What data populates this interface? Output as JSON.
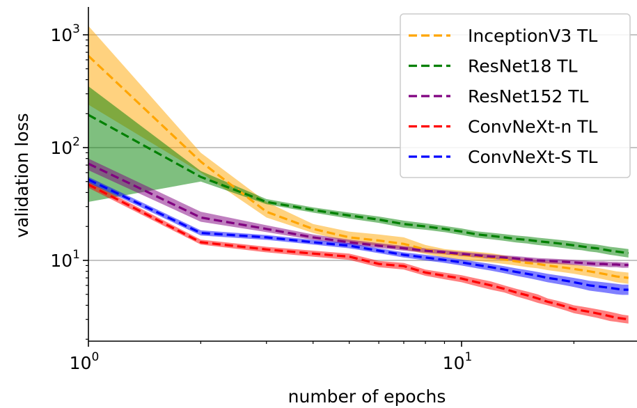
{
  "chart_data": {
    "type": "line",
    "xlabel": "number of epochs",
    "ylabel": "validation loss",
    "xscale": "log",
    "yscale": "log",
    "xlim": [
      1,
      28
    ],
    "ylim": [
      2,
      1600
    ],
    "grid": "horizontal major lines",
    "legend_position": "top-right",
    "x": [
      1,
      2,
      3,
      4,
      5,
      6,
      7,
      8,
      9,
      10,
      11,
      12,
      13,
      14,
      15,
      16,
      17,
      18,
      19,
      20,
      21,
      22,
      23,
      24,
      25,
      26,
      27,
      28
    ],
    "x_ticks": [
      {
        "value": 1,
        "base": "10",
        "exp": "0"
      },
      {
        "value": 10,
        "base": "10",
        "exp": "1"
      }
    ],
    "y_ticks": [
      {
        "value": 10,
        "base": "10",
        "exp": "1"
      },
      {
        "value": 100,
        "base": "10",
        "exp": "2"
      },
      {
        "value": 1000,
        "base": "10",
        "exp": "3"
      }
    ],
    "series": [
      {
        "name": "InceptionV3 TL",
        "color": "#ffa500",
        "band_color": "#ffa500",
        "values": [
          650,
          75,
          27,
          19,
          16,
          15,
          14,
          12.5,
          11.6,
          11.2,
          10.9,
          10.6,
          10.2,
          9.8,
          9.5,
          9.3,
          9.0,
          8.8,
          8.6,
          8.4,
          8.2,
          8.0,
          7.8,
          7.6,
          7.4,
          7.2,
          7.1,
          7.0
        ],
        "lower": [
          240,
          60,
          24,
          17.5,
          14.5,
          13.5,
          12.5,
          11.4,
          10.6,
          10.2,
          9.9,
          9.6,
          9.3,
          9.0,
          8.7,
          8.5,
          8.2,
          8.0,
          7.8,
          7.6,
          7.4,
          7.2,
          7.0,
          6.8,
          6.6,
          6.4,
          6.3,
          6.2
        ],
        "upper": [
          1200,
          90,
          33,
          21,
          18,
          17,
          16,
          13.7,
          12.6,
          12.2,
          11.9,
          11.6,
          11.1,
          10.6,
          10.3,
          10.1,
          9.8,
          9.6,
          9.4,
          9.2,
          9.0,
          8.8,
          8.6,
          8.4,
          8.2,
          8.0,
          7.9,
          7.8
        ]
      },
      {
        "name": "ResNet18 TL",
        "color": "#008000",
        "band_color": "#008000",
        "values": [
          195,
          55,
          33,
          28,
          25,
          23,
          21,
          20,
          19,
          18,
          17,
          16.5,
          16,
          15.5,
          15.2,
          14.8,
          14.5,
          14.2,
          13.9,
          13.6,
          13.3,
          13.0,
          12.8,
          12.5,
          12.2,
          12.0,
          11.8,
          11.6
        ],
        "lower": [
          33,
          50,
          31.5,
          26.5,
          23.5,
          21.5,
          19.5,
          18.7,
          17.8,
          16.8,
          15.9,
          15.4,
          14.9,
          14.4,
          14.1,
          13.7,
          13.4,
          13.1,
          12.8,
          12.5,
          12.3,
          12.0,
          11.8,
          11.5,
          11.2,
          11.0,
          10.8,
          10.6
        ],
        "upper": [
          350,
          62,
          35,
          29.5,
          26.5,
          24.5,
          22.5,
          21.3,
          20.2,
          19.2,
          18.1,
          17.6,
          17.1,
          16.6,
          16.3,
          15.9,
          15.6,
          15.3,
          15.0,
          14.7,
          14.3,
          14.0,
          13.8,
          13.5,
          13.2,
          13.0,
          12.8,
          12.6
        ]
      },
      {
        "name": "ResNet152 TL",
        "color": "#800080",
        "band_color": "#800080",
        "values": [
          72,
          24,
          19,
          16,
          14.5,
          13.5,
          12.8,
          12.2,
          11.8,
          11.4,
          11.1,
          10.8,
          10.6,
          10.4,
          10.2,
          10.0,
          9.9,
          9.8,
          9.7,
          9.6,
          9.5,
          9.4,
          9.3,
          9.3,
          9.2,
          9.2,
          9.1,
          9.1
        ],
        "lower": [
          63,
          22,
          17.8,
          15.2,
          13.8,
          12.9,
          12.2,
          11.7,
          11.3,
          10.9,
          10.6,
          10.3,
          10.1,
          9.9,
          9.7,
          9.5,
          9.4,
          9.3,
          9.2,
          9.1,
          9.0,
          8.9,
          8.8,
          8.8,
          8.7,
          8.7,
          8.6,
          8.6
        ],
        "upper": [
          80,
          27,
          20.5,
          17,
          15.3,
          14.2,
          13.4,
          12.8,
          12.3,
          11.9,
          11.6,
          11.3,
          11.1,
          10.9,
          10.7,
          10.5,
          10.4,
          10.3,
          10.2,
          10.1,
          10.0,
          9.9,
          9.8,
          9.8,
          9.7,
          9.7,
          9.6,
          9.6
        ]
      },
      {
        "name": "ConvNeXt-n TL",
        "color": "#ff0000",
        "band_color": "#ff0000",
        "values": [
          47,
          14.5,
          12.5,
          11.5,
          10.8,
          9.3,
          8.9,
          7.8,
          7.3,
          6.9,
          6.4,
          6.0,
          5.6,
          5.2,
          4.9,
          4.6,
          4.3,
          4.1,
          3.9,
          3.7,
          3.6,
          3.5,
          3.4,
          3.3,
          3.2,
          3.1,
          3.05,
          3.0
        ],
        "lower": [
          44,
          13.8,
          11.8,
          10.8,
          10.1,
          8.7,
          8.3,
          7.3,
          6.8,
          6.4,
          5.9,
          5.5,
          5.2,
          4.8,
          4.5,
          4.2,
          4.0,
          3.8,
          3.6,
          3.4,
          3.3,
          3.2,
          3.1,
          3.0,
          2.9,
          2.85,
          2.8,
          2.75
        ],
        "upper": [
          50,
          15.3,
          13.2,
          12.2,
          11.5,
          9.9,
          9.5,
          8.3,
          7.8,
          7.4,
          6.9,
          6.5,
          6.0,
          5.6,
          5.3,
          5.0,
          4.6,
          4.4,
          4.2,
          4.0,
          3.9,
          3.8,
          3.7,
          3.6,
          3.5,
          3.4,
          3.3,
          3.25
        ]
      },
      {
        "name": "ConvNeXt-S TL",
        "color": "#0000ff",
        "band_color": "#0000ff",
        "values": [
          52,
          17.5,
          16,
          14.5,
          13.5,
          12.2,
          11.2,
          10.6,
          10.1,
          9.6,
          9.1,
          8.7,
          8.3,
          7.9,
          7.6,
          7.3,
          7.0,
          6.8,
          6.6,
          6.4,
          6.2,
          6.0,
          5.9,
          5.8,
          5.7,
          5.6,
          5.5,
          5.5
        ],
        "lower": [
          49,
          16.6,
          15.2,
          13.8,
          12.8,
          11.6,
          10.6,
          10.0,
          9.5,
          9.0,
          8.5,
          8.1,
          7.7,
          7.3,
          7.0,
          6.7,
          6.4,
          6.2,
          6.0,
          5.8,
          5.6,
          5.4,
          5.3,
          5.2,
          5.1,
          5.0,
          4.95,
          4.95
        ],
        "upper": [
          55,
          18.5,
          16.8,
          15.2,
          14.2,
          12.8,
          11.8,
          11.2,
          10.7,
          10.2,
          9.7,
          9.3,
          8.9,
          8.5,
          8.2,
          7.9,
          7.6,
          7.4,
          7.2,
          7.0,
          6.8,
          6.6,
          6.5,
          6.4,
          6.3,
          6.2,
          6.1,
          6.1
        ]
      }
    ]
  }
}
